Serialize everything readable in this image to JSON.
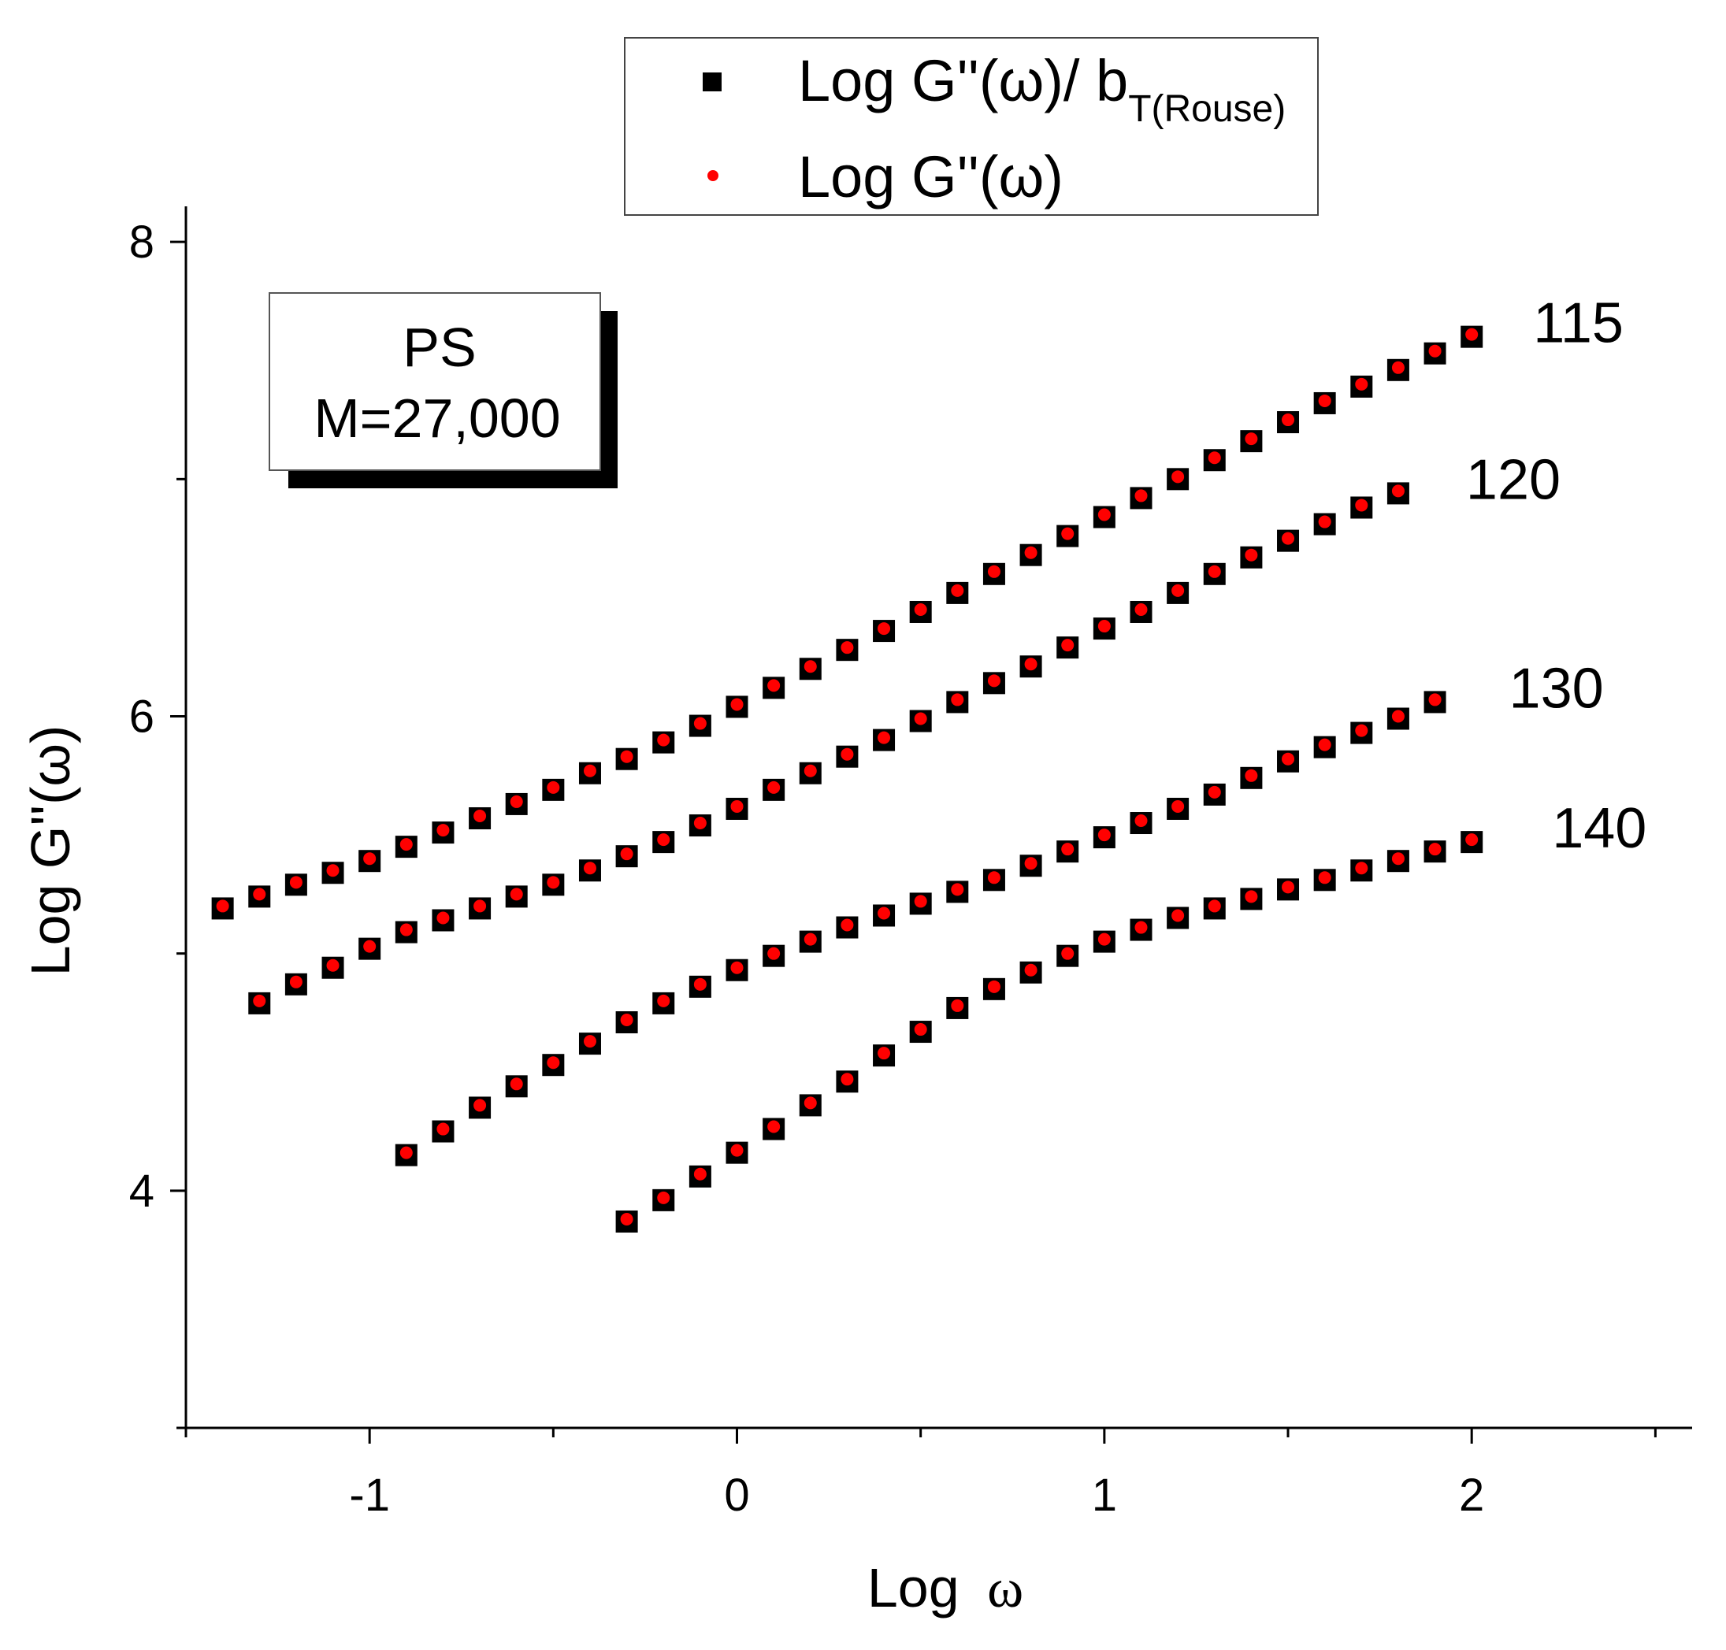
{
  "chart_data": {
    "type": "scatter",
    "xlabel_text": "Log",
    "xlabel_symbol": "ω",
    "ylabel": "Log G''(ω)",
    "xlim": [
      -1.5,
      2.6
    ],
    "ylim": [
      3.0,
      8.15
    ],
    "x_ticks": [
      -1,
      0,
      1,
      2
    ],
    "y_ticks": [
      4,
      6,
      8
    ],
    "legend": {
      "placement": "top-center",
      "entries": [
        {
          "marker": "square",
          "color": "#000000",
          "text": "Log G''(ω)/ b",
          "sub": "T(Rouse)"
        },
        {
          "marker": "dot",
          "color": "#ff0000",
          "text": "Log G''(ω)",
          "sub": ""
        }
      ]
    },
    "annotation": {
      "line1": "PS",
      "line2": "M=27,000"
    },
    "series": [
      {
        "label": "115",
        "x_start": -1.4,
        "x_step": 0.1,
        "y": [
          5.2,
          5.25,
          5.3,
          5.35,
          5.4,
          5.46,
          5.52,
          5.58,
          5.64,
          5.7,
          5.77,
          5.83,
          5.9,
          5.97,
          6.05,
          6.13,
          6.21,
          6.29,
          6.37,
          6.45,
          6.53,
          6.61,
          6.69,
          6.77,
          6.85,
          6.93,
          7.01,
          7.09,
          7.17,
          7.25,
          7.33,
          7.4,
          7.47,
          7.54,
          7.61
        ]
      },
      {
        "label": "120",
        "x_start": -1.3,
        "x_step": 0.1,
        "y": [
          4.8,
          4.88,
          4.95,
          5.03,
          5.1,
          5.15,
          5.2,
          5.25,
          5.3,
          5.36,
          5.42,
          5.48,
          5.55,
          5.62,
          5.7,
          5.77,
          5.84,
          5.91,
          5.99,
          6.07,
          6.15,
          6.22,
          6.3,
          6.38,
          6.45,
          6.53,
          6.61,
          6.68,
          6.75,
          6.82,
          6.89,
          6.95
        ]
      },
      {
        "label": "130",
        "x_start": -0.9,
        "x_step": 0.1,
        "y": [
          4.16,
          4.26,
          4.36,
          4.45,
          4.54,
          4.63,
          4.72,
          4.8,
          4.87,
          4.94,
          5.0,
          5.06,
          5.12,
          5.17,
          5.22,
          5.27,
          5.32,
          5.38,
          5.44,
          5.5,
          5.56,
          5.62,
          5.68,
          5.75,
          5.82,
          5.88,
          5.94,
          6.0,
          6.07
        ]
      },
      {
        "label": "140",
        "x_start": -0.3,
        "x_step": 0.1,
        "y": [
          3.88,
          3.97,
          4.07,
          4.17,
          4.27,
          4.37,
          4.47,
          4.58,
          4.68,
          4.78,
          4.86,
          4.93,
          5.0,
          5.06,
          5.11,
          5.16,
          5.2,
          5.24,
          5.28,
          5.32,
          5.36,
          5.4,
          5.44,
          5.48
        ]
      }
    ]
  }
}
